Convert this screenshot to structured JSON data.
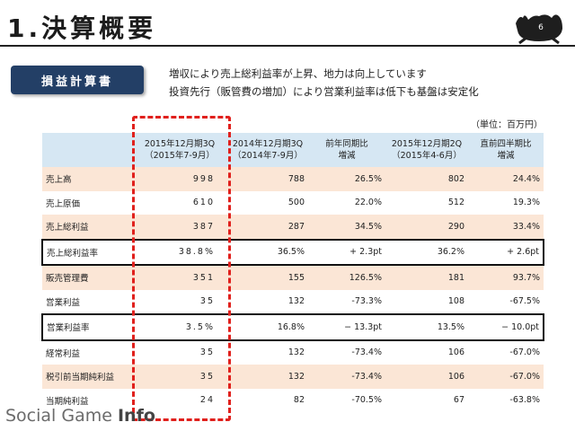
{
  "header": {
    "title": "1.決算概要",
    "page_number": "6"
  },
  "section_label": "損益計算書",
  "summary_lines": [
    "増収により売上総利益率が上昇、地力は向上しています",
    "投資先行（販管費の増加）により営業利益率は低下も基盤は安定化"
  ],
  "unit": "（単位：百万円）",
  "table": {
    "headers": [
      "",
      "2015年12月期3Q\n（2015年7-9月）",
      "2014年12月期3Q\n（2014年7-9月）",
      "前年同期比\n増減",
      "2015年12月期2Q\n（2015年4-6月）",
      "直前四半期比\n増減"
    ],
    "rows": [
      [
        "売上高",
        "998",
        "788",
        "26.5%",
        "802",
        "24.4%"
      ],
      [
        "売上原価",
        "610",
        "500",
        "22.0%",
        "512",
        "19.3%"
      ],
      [
        "売上総利益",
        "387",
        "287",
        "34.5%",
        "290",
        "33.4%"
      ],
      [
        "売上総利益率",
        "38.8%",
        "36.5%",
        "+ 2.3pt",
        "36.2%",
        "+ 2.6pt"
      ],
      [
        "販売管理費",
        "351",
        "155",
        "126.5%",
        "181",
        "93.7%"
      ],
      [
        "営業利益",
        "35",
        "132",
        "-73.3%",
        "108",
        "-67.5%"
      ],
      [
        "営業利益率",
        "3.5%",
        "16.8%",
        "− 13.3pt",
        "13.5%",
        "− 10.0pt"
      ],
      [
        "経常利益",
        "35",
        "132",
        "-73.4%",
        "106",
        "-67.0%"
      ],
      [
        "税引前当期純利益",
        "35",
        "132",
        "-73.4%",
        "106",
        "-67.0%"
      ],
      [
        "当期純利益",
        "24",
        "82",
        "-70.5%",
        "67",
        "-63.8%"
      ]
    ]
  },
  "watermark": {
    "brand": "Social Game ",
    "brand_bold": "Info"
  },
  "colors": {
    "header_bg": "#d6e7f3",
    "odd_row_bg": "#fbe6d6",
    "tag_bg": "#233f66",
    "highlight": "#e0201c"
  }
}
